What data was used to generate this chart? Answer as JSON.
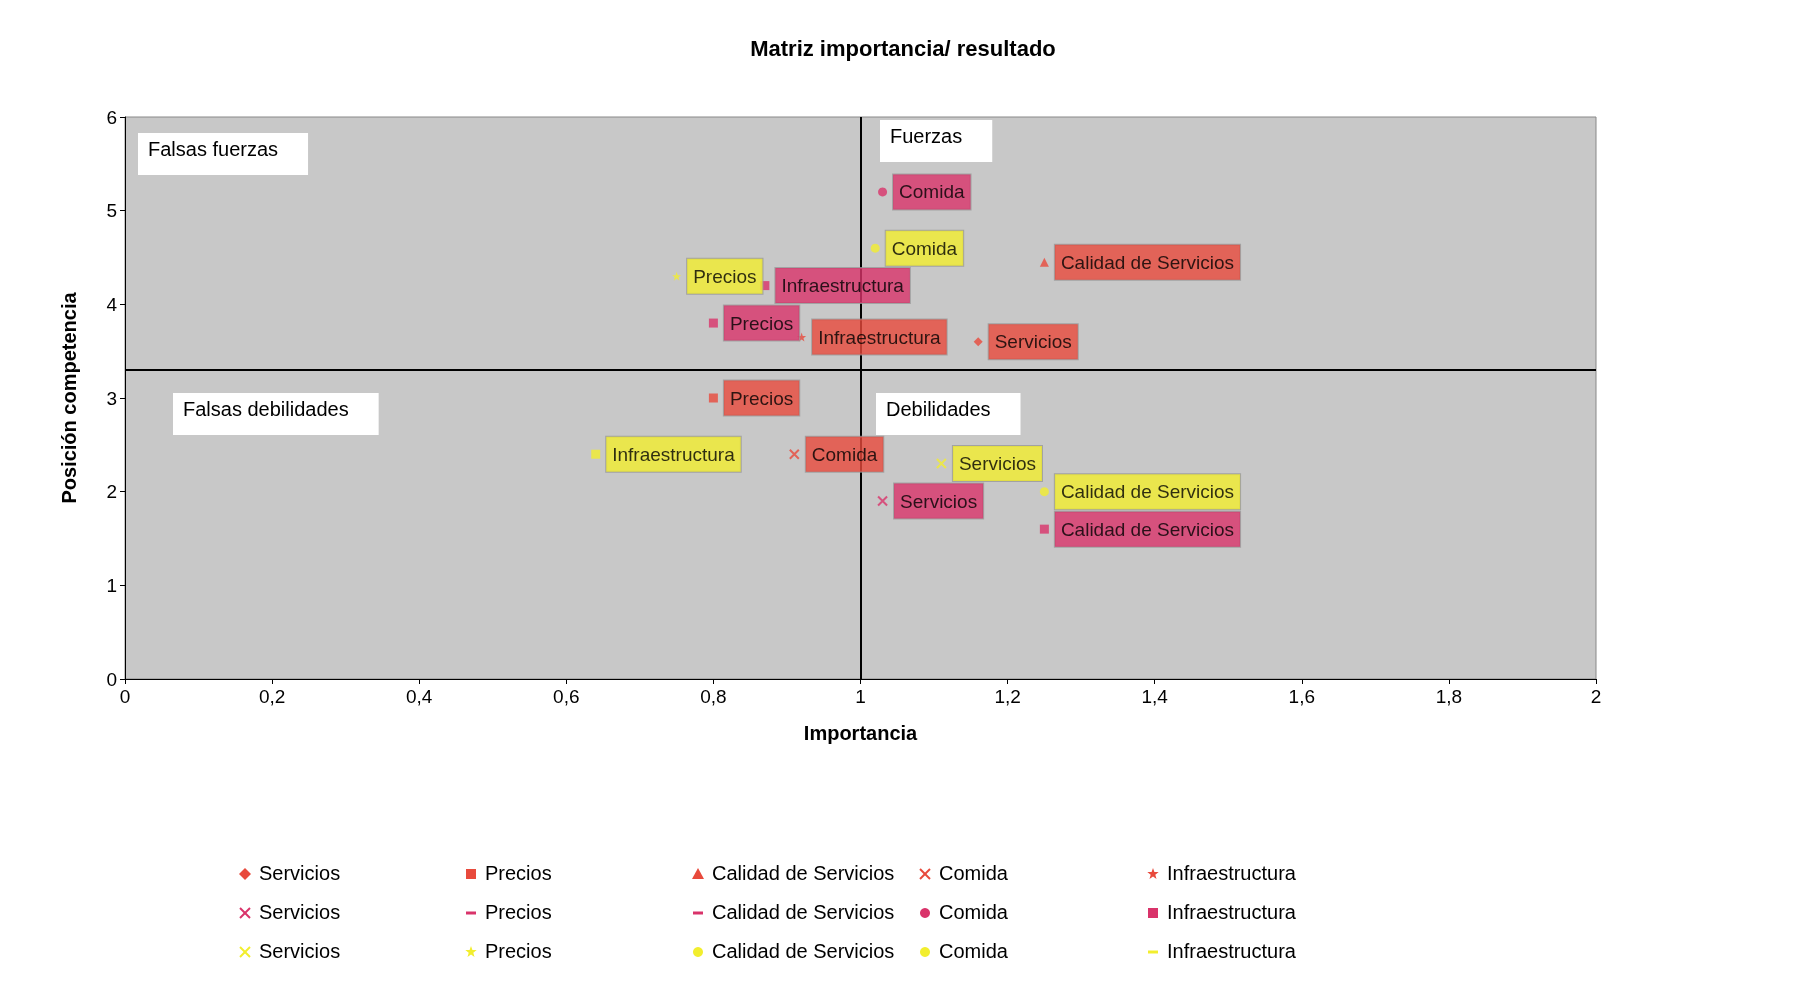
{
  "chart_data": {
    "type": "scatter",
    "title": "Matriz importancia/ resultado",
    "xlabel": "Importancia",
    "ylabel": "Posición competencia",
    "xlim": [
      0,
      2
    ],
    "xticks": [
      0,
      {
        "value": 0.2,
        "label": "0,2"
      },
      {
        "value": 0.4,
        "label": "0,4"
      },
      {
        "value": 0.6,
        "label": "0,6"
      },
      {
        "value": 0.8,
        "label": "0,8"
      },
      1,
      {
        "value": 1.2,
        "label": "1,2"
      },
      {
        "value": 1.4,
        "label": "1,4"
      },
      {
        "value": 1.6,
        "label": "1,6"
      },
      {
        "value": 1.8,
        "label": "1,8"
      },
      2
    ],
    "ylim": [
      0,
      6
    ],
    "yticks": [
      0,
      1,
      2,
      3,
      4,
      5,
      6
    ],
    "grid": false,
    "legend": "bottom",
    "ref_lines": [
      {
        "axis": "x",
        "value": 1,
        "color": "#000000"
      },
      {
        "axis": "y",
        "value": 3.3,
        "color": "#000000"
      }
    ],
    "annotations": [
      "Falsas fuerzas",
      "Fuerzas",
      "Falsas debilidades",
      "Debilidades"
    ],
    "series": [
      {
        "name": "Servicios",
        "color": "#e84a3c",
        "marker": "diamond",
        "x": [
          1.16
        ],
        "values": [
          3.6
        ]
      },
      {
        "name": "Precios",
        "color": "#e84a3c",
        "marker": "square",
        "x": [
          0.8
        ],
        "values": [
          3.0
        ]
      },
      {
        "name": "Calidad de Servicios",
        "color": "#e84a3c",
        "marker": "triangle",
        "x": [
          1.25
        ],
        "values": [
          4.45
        ]
      },
      {
        "name": "Comida",
        "color": "#e84a3c",
        "marker": "cross",
        "x": [
          0.91
        ],
        "values": [
          2.4
        ]
      },
      {
        "name": "Infraestructura",
        "color": "#e84a3c",
        "marker": "star",
        "x": [
          0.92
        ],
        "values": [
          3.65
        ]
      },
      {
        "name": "Servicios",
        "color": "#d9336a",
        "marker": "cross",
        "x": [
          1.03
        ],
        "values": [
          1.9
        ]
      },
      {
        "name": "Precios",
        "color": "#d9336a",
        "x": [
          0.8
        ],
        "values": [
          3.8
        ]
      },
      {
        "name": "Calidad de Servicios",
        "color": "#d9336a",
        "x": [
          1.25
        ],
        "values": [
          1.6
        ]
      },
      {
        "name": "Comida",
        "color": "#d9336a",
        "marker": "circle",
        "x": [
          1.03
        ],
        "values": [
          5.2
        ]
      },
      {
        "name": "Infraestructura",
        "color": "#d9336a",
        "marker": "square",
        "x": [
          0.87
        ],
        "values": [
          4.2
        ]
      },
      {
        "name": "Servicios",
        "color": "#f2ee2e",
        "marker": "cross",
        "x": [
          1.11
        ],
        "values": [
          2.3
        ]
      },
      {
        "name": "Precios",
        "color": "#f2ee2e",
        "marker": "star",
        "x": [
          0.75
        ],
        "values": [
          4.3
        ]
      },
      {
        "name": "Calidad de Servicios",
        "color": "#f2ee2e",
        "marker": "circle",
        "x": [
          1.25
        ],
        "values": [
          2.0
        ]
      },
      {
        "name": "Comida",
        "color": "#f2ee2e",
        "marker": "circle",
        "x": [
          1.02
        ],
        "values": [
          4.6
        ]
      },
      {
        "name": "Infraestructura",
        "color": "#f2ee2e",
        "x": [
          0.64
        ],
        "values": [
          2.4
        ]
      }
    ]
  }
}
